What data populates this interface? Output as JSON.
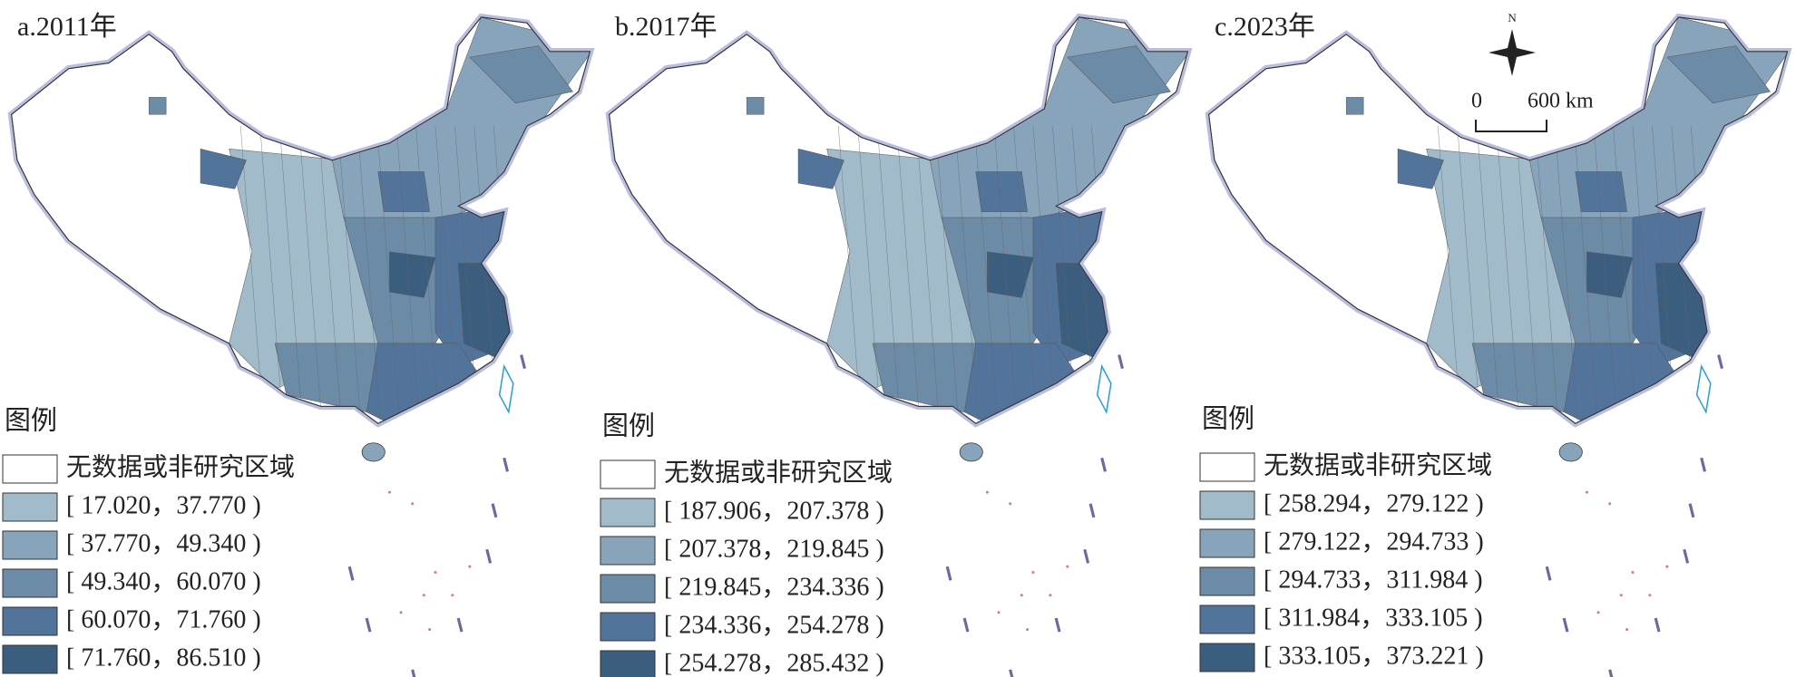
{
  "panels": [
    {
      "title": "a.2011年",
      "legend": {
        "title": "图例",
        "items": [
          {
            "label": "无数据或非研究区域",
            "color": "#ffffff"
          },
          {
            "label": "[ 17.020，37.770 )",
            "color": "#a2bbcb"
          },
          {
            "label": "[ 37.770，49.340 )",
            "color": "#87a4ba"
          },
          {
            "label": "[ 49.340，60.070 )",
            "color": "#6c8ba6"
          },
          {
            "label": "[ 60.070，71.760 )",
            "color": "#52739a"
          },
          {
            "label": "[ 71.760，86.510 )",
            "color": "#3b5d7e"
          }
        ]
      }
    },
    {
      "title": "b.2017年",
      "legend": {
        "title": "图例",
        "items": [
          {
            "label": "无数据或非研究区域",
            "color": "#ffffff"
          },
          {
            "label": "[ 187.906，207.378 )",
            "color": "#a2bbcb"
          },
          {
            "label": "[ 207.378，219.845 )",
            "color": "#87a4ba"
          },
          {
            "label": "[ 219.845，234.336 )",
            "color": "#6c8ba6"
          },
          {
            "label": "[ 234.336，254.278 )",
            "color": "#52739a"
          },
          {
            "label": "[ 254.278，285.432 )",
            "color": "#3b5d7e"
          }
        ]
      }
    },
    {
      "title": "c.2023年",
      "legend": {
        "title": "图例",
        "items": [
          {
            "label": "无数据或非研究区域",
            "color": "#ffffff"
          },
          {
            "label": "[ 258.294，279.122 )",
            "color": "#a2bbcb"
          },
          {
            "label": "[ 279.122，294.733 )",
            "color": "#87a4ba"
          },
          {
            "label": "[ 294.733，311.984 )",
            "color": "#6c8ba6"
          },
          {
            "label": "[ 311.984，333.105 )",
            "color": "#52739a"
          },
          {
            "label": "[ 333.105，373.221 )",
            "color": "#3b5d7e"
          }
        ]
      }
    }
  ],
  "north_arrow": {
    "label": "N"
  },
  "scale_bar": {
    "start": "0",
    "end": "600 km"
  }
}
